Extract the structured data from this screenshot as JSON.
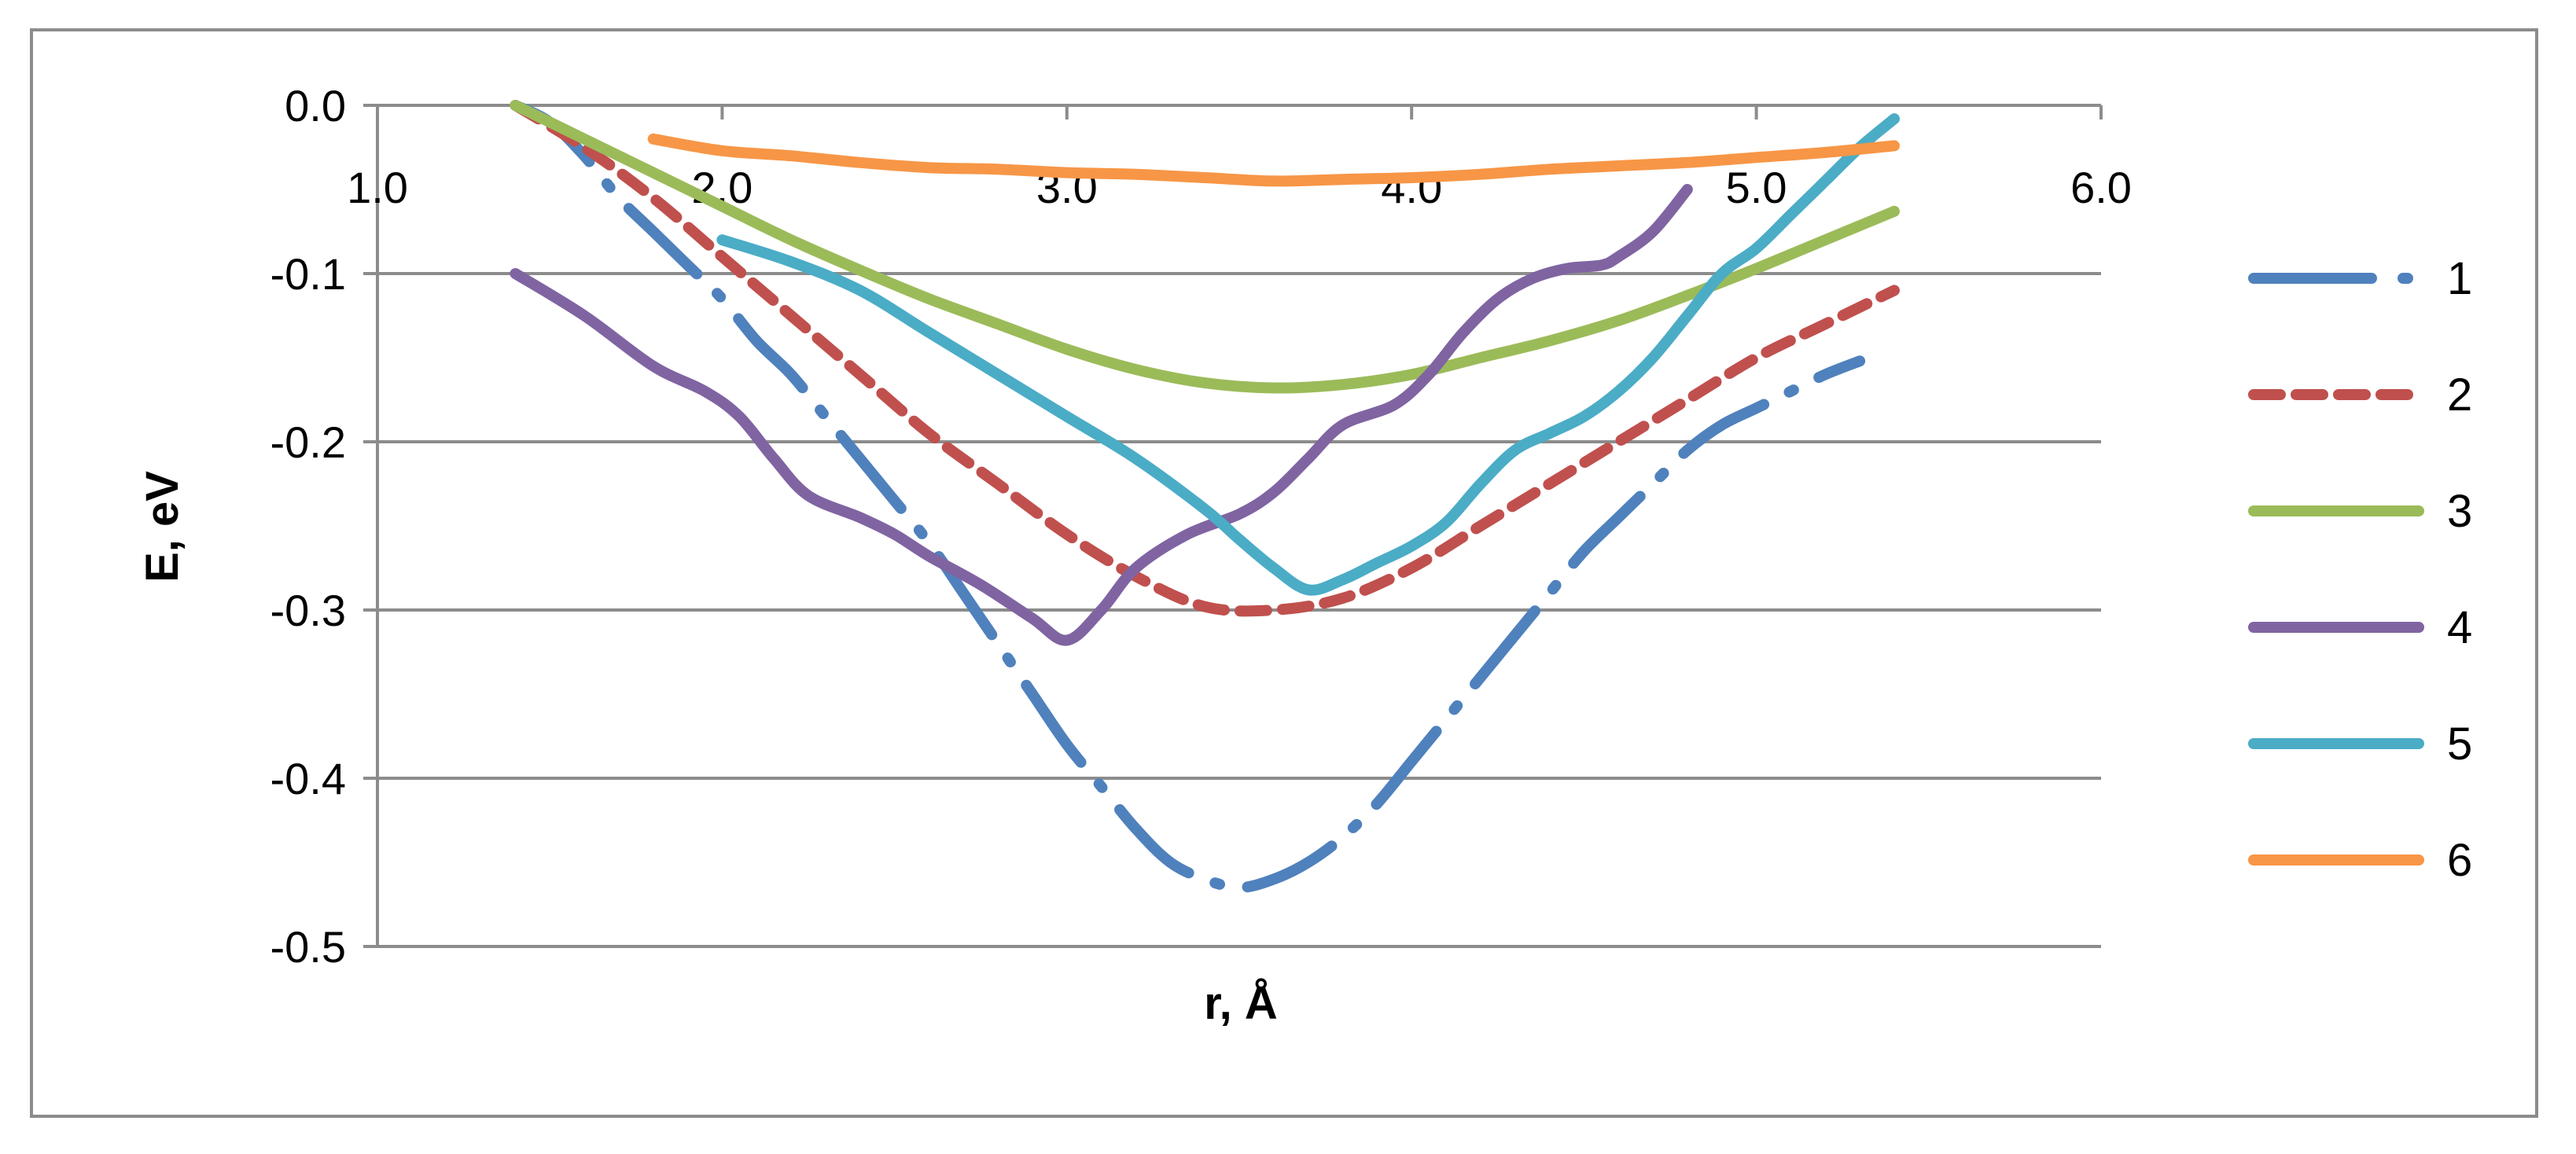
{
  "chart_data": {
    "type": "line",
    "title": "",
    "xlabel": "r, Å",
    "ylabel": "E, eV",
    "xlim": [
      1.0,
      6.0
    ],
    "ylim": [
      -0.5,
      0.0
    ],
    "xticks": [
      "1.0",
      "2.0",
      "3.0",
      "4.0",
      "5.0",
      "6.0"
    ],
    "yticks": [
      "0.0",
      "-0.1",
      "-0.2",
      "-0.3",
      "-0.4",
      "-0.5"
    ],
    "grid": "horizontal",
    "legend_position": "right",
    "series": [
      {
        "name": "1",
        "color": "#4f81bd",
        "dash": "long-dash-dot",
        "x": [
          1.4,
          1.5,
          1.6,
          1.7,
          1.8,
          1.9,
          2.0,
          2.1,
          2.2,
          2.3,
          2.4,
          2.5,
          2.6,
          2.7,
          2.8,
          2.9,
          3.0,
          3.1,
          3.2,
          3.3,
          3.4,
          3.5,
          3.6,
          3.7,
          3.8,
          3.9,
          4.0,
          4.1,
          4.2,
          4.3,
          4.4,
          4.5,
          4.6,
          4.7,
          4.8,
          4.9,
          5.0,
          5.1,
          5.2,
          5.3
        ],
        "y": [
          0.0,
          -0.01,
          -0.03,
          -0.055,
          -0.075,
          -0.095,
          -0.115,
          -0.14,
          -0.16,
          -0.185,
          -0.21,
          -0.235,
          -0.26,
          -0.29,
          -0.32,
          -0.35,
          -0.38,
          -0.405,
          -0.43,
          -0.45,
          -0.46,
          -0.465,
          -0.46,
          -0.45,
          -0.435,
          -0.415,
          -0.39,
          -0.365,
          -0.34,
          -0.315,
          -0.29,
          -0.265,
          -0.245,
          -0.225,
          -0.205,
          -0.19,
          -0.18,
          -0.17,
          -0.16,
          -0.152
        ]
      },
      {
        "name": "2",
        "color": "#c0504d",
        "dash": "dashed",
        "x": [
          1.4,
          1.6,
          1.8,
          2.0,
          2.2,
          2.4,
          2.6,
          2.8,
          3.0,
          3.2,
          3.4,
          3.6,
          3.8,
          4.0,
          4.2,
          4.4,
          4.6,
          4.8,
          5.0,
          5.2,
          5.4
        ],
        "y": [
          0.0,
          -0.025,
          -0.055,
          -0.09,
          -0.125,
          -0.16,
          -0.195,
          -0.225,
          -0.255,
          -0.28,
          -0.298,
          -0.3,
          -0.293,
          -0.275,
          -0.25,
          -0.225,
          -0.2,
          -0.175,
          -0.15,
          -0.13,
          -0.11
        ]
      },
      {
        "name": "3",
        "color": "#9bbb59",
        "dash": "solid",
        "x": [
          1.4,
          1.6,
          1.8,
          2.0,
          2.2,
          2.4,
          2.6,
          2.8,
          3.0,
          3.2,
          3.4,
          3.6,
          3.8,
          4.0,
          4.2,
          4.4,
          4.6,
          4.8,
          5.0,
          5.2,
          5.4
        ],
        "y": [
          0.0,
          -0.02,
          -0.04,
          -0.06,
          -0.08,
          -0.098,
          -0.115,
          -0.13,
          -0.145,
          -0.157,
          -0.165,
          -0.168,
          -0.166,
          -0.16,
          -0.15,
          -0.14,
          -0.128,
          -0.113,
          -0.097,
          -0.08,
          -0.063
        ]
      },
      {
        "name": "4",
        "color": "#8064a2",
        "dash": "solid",
        "x": [
          1.4,
          1.6,
          1.8,
          1.95,
          2.05,
          2.15,
          2.25,
          2.4,
          2.5,
          2.6,
          2.75,
          2.9,
          3.0,
          3.1,
          3.2,
          3.35,
          3.5,
          3.6,
          3.7,
          3.8,
          3.95,
          4.05,
          4.15,
          4.25,
          4.35,
          4.45,
          4.55,
          4.6,
          4.7,
          4.8
        ],
        "y": [
          -0.1,
          -0.125,
          -0.155,
          -0.17,
          -0.185,
          -0.21,
          -0.232,
          -0.245,
          -0.255,
          -0.268,
          -0.285,
          -0.305,
          -0.318,
          -0.3,
          -0.275,
          -0.255,
          -0.243,
          -0.23,
          -0.21,
          -0.19,
          -0.178,
          -0.16,
          -0.135,
          -0.115,
          -0.103,
          -0.097,
          -0.095,
          -0.09,
          -0.075,
          -0.05
        ]
      },
      {
        "name": "5",
        "color": "#4bacc6",
        "dash": "solid",
        "x": [
          2.0,
          2.2,
          2.4,
          2.6,
          2.8,
          3.0,
          3.2,
          3.4,
          3.5,
          3.6,
          3.7,
          3.8,
          3.9,
          4.0,
          4.1,
          4.2,
          4.3,
          4.4,
          4.5,
          4.6,
          4.7,
          4.8,
          4.9,
          5.0,
          5.1,
          5.2,
          5.3,
          5.4
        ],
        "y": [
          -0.08,
          -0.093,
          -0.11,
          -0.135,
          -0.16,
          -0.185,
          -0.21,
          -0.24,
          -0.258,
          -0.275,
          -0.288,
          -0.282,
          -0.272,
          -0.262,
          -0.248,
          -0.225,
          -0.205,
          -0.195,
          -0.185,
          -0.17,
          -0.15,
          -0.125,
          -0.1,
          -0.085,
          -0.065,
          -0.045,
          -0.025,
          -0.008
        ]
      },
      {
        "name": "6",
        "color": "#f79646",
        "dash": "solid",
        "x": [
          1.8,
          2.0,
          2.2,
          2.4,
          2.6,
          2.8,
          3.0,
          3.2,
          3.4,
          3.6,
          3.8,
          4.0,
          4.2,
          4.4,
          4.6,
          4.8,
          5.0,
          5.2,
          5.4
        ],
        "y": [
          -0.02,
          -0.027,
          -0.03,
          -0.034,
          -0.037,
          -0.038,
          -0.04,
          -0.041,
          -0.043,
          -0.045,
          -0.044,
          -0.043,
          -0.041,
          -0.038,
          -0.036,
          -0.034,
          -0.031,
          -0.028,
          -0.024
        ]
      }
    ]
  }
}
